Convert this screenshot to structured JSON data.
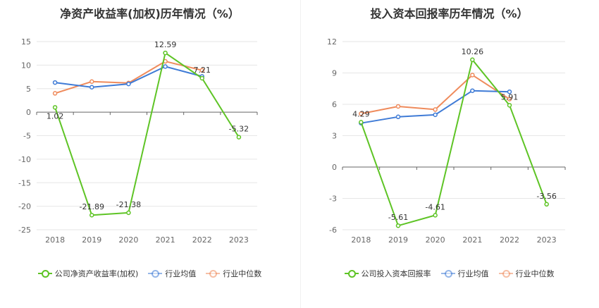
{
  "chart_data": [
    {
      "type": "line",
      "title": "净资产收益率(加权)历年情况（%）",
      "categories": [
        "2018",
        "2019",
        "2020",
        "2021",
        "2022",
        "2023"
      ],
      "ylim": [
        -25,
        15
      ],
      "yticks": [
        15,
        10,
        5,
        0,
        -5,
        -10,
        -15,
        -20,
        -25
      ],
      "grid": true,
      "legend_position": "bottom",
      "series": [
        {
          "name": "公司净资产收益率(加权)",
          "color": "#5ec425",
          "values": [
            1.02,
            -21.89,
            -21.38,
            12.59,
            7.21,
            -5.32
          ],
          "labels": [
            "1.02",
            "-21.89",
            "-21.38",
            "12.59",
            "7.21",
            "-5.32"
          ]
        },
        {
          "name": "行业均值",
          "color": "#3f7bd6",
          "values": [
            6.3,
            5.3,
            6.0,
            9.7,
            7.6,
            null
          ]
        },
        {
          "name": "行业中位数",
          "color": "#ef8b5c",
          "values": [
            4.0,
            6.5,
            6.2,
            10.8,
            8.9,
            null
          ]
        }
      ]
    },
    {
      "type": "line",
      "title": "投入资本回报率历年情况（%）",
      "categories": [
        "2018",
        "2019",
        "2020",
        "2021",
        "2022",
        "2023"
      ],
      "ylim": [
        -6,
        12
      ],
      "yticks": [
        12,
        9,
        6,
        3,
        0,
        -3,
        -6
      ],
      "grid": true,
      "legend_position": "bottom",
      "series": [
        {
          "name": "公司投入资本回报率",
          "color": "#5ec425",
          "values": [
            4.29,
            -5.61,
            -4.61,
            10.26,
            5.91,
            -3.56
          ],
          "labels": [
            "4.29",
            "-5.61",
            "-4.61",
            "10.26",
            "5.91",
            "-3.56"
          ]
        },
        {
          "name": "行业均值",
          "color": "#3f7bd6",
          "values": [
            4.2,
            4.8,
            5.0,
            7.3,
            7.2,
            null
          ]
        },
        {
          "name": "行业中位数",
          "color": "#ef8b5c",
          "values": [
            5.1,
            5.8,
            5.5,
            8.8,
            6.5,
            null
          ]
        }
      ]
    }
  ]
}
